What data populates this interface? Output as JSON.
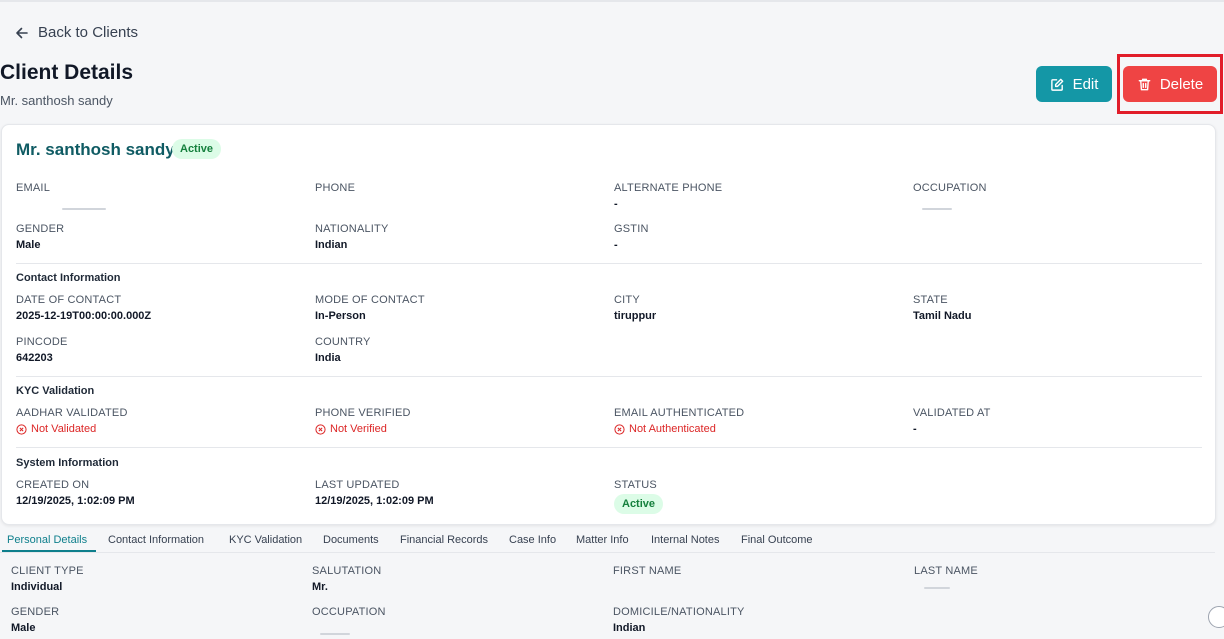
{
  "back": {
    "label": "Back to Clients"
  },
  "header": {
    "title": "Client Details",
    "subtitle": "Mr. santhosh sandy",
    "edit_label": "Edit",
    "delete_label": "Delete"
  },
  "card": {
    "name": "Mr. santhosh sandy",
    "status_badge": "Active",
    "fields": {
      "email": {
        "label": "EMAIL",
        "value": ""
      },
      "phone": {
        "label": "PHONE",
        "value": ""
      },
      "alt_phone": {
        "label": "ALTERNATE PHONE",
        "value": "-"
      },
      "occupation": {
        "label": "OCCUPATION",
        "value": ""
      },
      "gender": {
        "label": "GENDER",
        "value": "Male"
      },
      "nationality": {
        "label": "NATIONALITY",
        "value": "Indian"
      },
      "gstin": {
        "label": "GSTIN",
        "value": "-"
      }
    },
    "contact": {
      "title": "Contact Information",
      "date_of_contact": {
        "label": "DATE OF CONTACT",
        "value": "2025-12-19T00:00:00.000Z"
      },
      "mode_of_contact": {
        "label": "MODE OF CONTACT",
        "value": "In-Person"
      },
      "city": {
        "label": "CITY",
        "value": "tiruppur"
      },
      "state": {
        "label": "STATE",
        "value": "Tamil Nadu"
      },
      "pincode": {
        "label": "PINCODE",
        "value": "642203"
      },
      "country": {
        "label": "COUNTRY",
        "value": "India"
      }
    },
    "kyc": {
      "title": "KYC Validation",
      "aadhar": {
        "label": "AADHAR VALIDATED",
        "value": "Not Validated"
      },
      "phone_verified": {
        "label": "PHONE VERIFIED",
        "value": "Not Verified"
      },
      "email_auth": {
        "label": "EMAIL AUTHENTICATED",
        "value": "Not Authenticated"
      },
      "validated_at": {
        "label": "VALIDATED AT",
        "value": "-"
      }
    },
    "system": {
      "title": "System Information",
      "created_on": {
        "label": "CREATED ON",
        "value": "12/19/2025, 1:02:09 PM"
      },
      "last_updated": {
        "label": "LAST UPDATED",
        "value": "12/19/2025, 1:02:09 PM"
      },
      "status": {
        "label": "STATUS",
        "value": "Active"
      }
    }
  },
  "tabs": [
    "Personal Details",
    "Contact Information",
    "KYC Validation",
    "Documents",
    "Financial Records",
    "Case Info",
    "Matter Info",
    "Internal Notes",
    "Final Outcome"
  ],
  "personal_details": {
    "client_type": {
      "label": "CLIENT TYPE",
      "value": "Individual"
    },
    "salutation": {
      "label": "SALUTATION",
      "value": "Mr."
    },
    "first_name": {
      "label": "FIRST NAME",
      "value": ""
    },
    "last_name": {
      "label": "LAST NAME",
      "value": ""
    },
    "gender": {
      "label": "GENDER",
      "value": "Male"
    },
    "occupation": {
      "label": "OCCUPATION",
      "value": ""
    },
    "domicile": {
      "label": "DOMICILE/NATIONALITY",
      "value": "Indian"
    }
  },
  "colors": {
    "accent": "#1497a6",
    "danger": "#ef4444",
    "success_bg": "#dcfce7",
    "success_text": "#15803d"
  }
}
